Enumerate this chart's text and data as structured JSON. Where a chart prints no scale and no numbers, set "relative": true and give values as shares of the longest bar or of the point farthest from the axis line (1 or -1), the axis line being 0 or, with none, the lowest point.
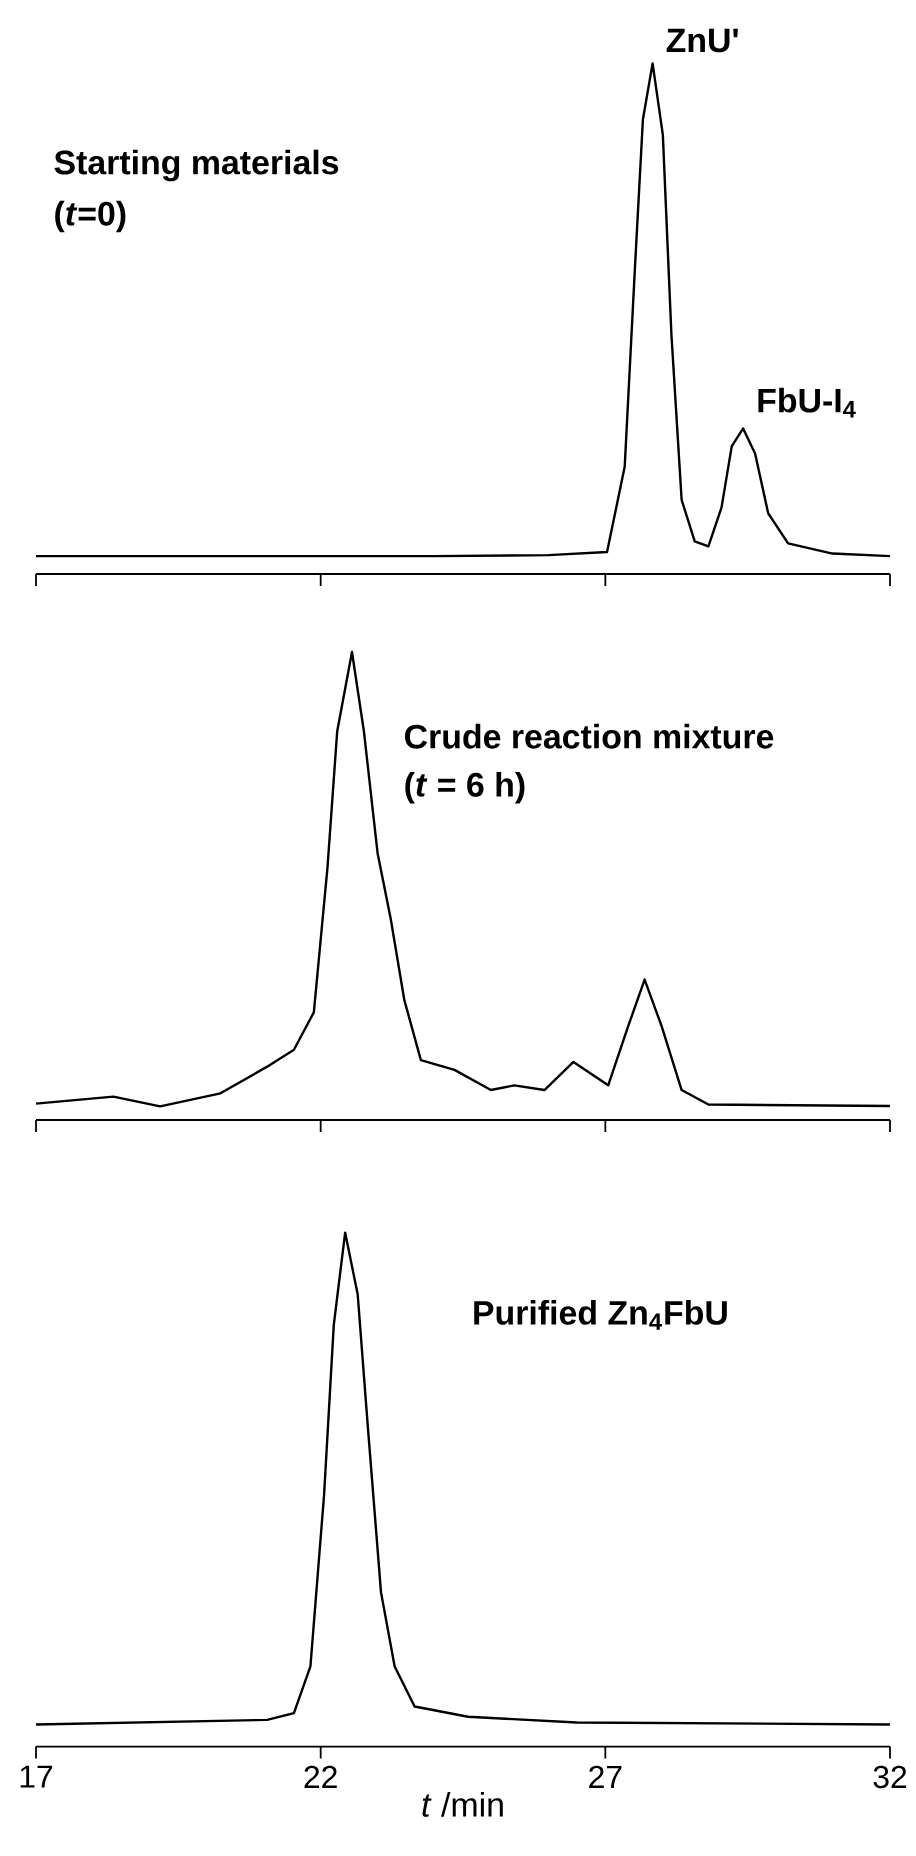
{
  "chart_data": [
    {
      "type": "line",
      "title": "Starting materials",
      "subtitle": "(*t*=0)",
      "relative": true,
      "xlim": [
        17,
        32
      ],
      "xticks": [
        17,
        22,
        27,
        32
      ],
      "tick_labels": false,
      "line_style": "solid",
      "annotations": [
        {
          "text": "ZnU'",
          "x": 27.83,
          "y": 1
        },
        {
          "text": "FbU-I$_{4}$",
          "x": 29.42,
          "y": 0.285
        }
      ],
      "x": [
        17,
        18,
        20,
        24,
        26,
        27.03,
        27.34,
        27.52,
        27.66,
        27.83,
        28.01,
        28.16,
        28.34,
        28.57,
        28.81,
        29.04,
        29.22,
        29.42,
        29.63,
        29.86,
        30.21,
        30.99,
        32
      ],
      "series": [
        {
          "color": "#000000",
          "values": [
            0.035,
            0.035,
            0.035,
            0.035,
            0.037,
            0.043,
            0.21,
            0.6,
            0.89,
            1,
            0.86,
            0.47,
            0.145,
            0.064,
            0.054,
            0.13,
            0.25,
            0.285,
            0.236,
            0.119,
            0.06,
            0.04,
            0.035
          ]
        }
      ]
    },
    {
      "type": "line",
      "title": "Crude reaction mixture",
      "subtitle": "(*t* = 6 h)",
      "relative": true,
      "xlim": [
        17,
        32
      ],
      "xticks": [
        17,
        22,
        27,
        32
      ],
      "tick_labels": false,
      "line_style": "solid",
      "x": [
        17,
        18.36,
        19.18,
        20.24,
        21.06,
        21.53,
        21.88,
        22.12,
        22.29,
        22.55,
        22.76,
        23.0,
        23.23,
        23.47,
        23.76,
        24.35,
        24.99,
        25.4,
        25.93,
        26.44,
        27.05,
        27.4,
        27.69,
        27.99,
        28.34,
        28.81,
        32
      ],
      "series": [
        {
          "color": "#000000",
          "values": [
            0.035,
            0.05,
            0.029,
            0.057,
            0.114,
            0.15,
            0.23,
            0.54,
            0.83,
            1,
            0.83,
            0.57,
            0.43,
            0.256,
            0.128,
            0.107,
            0.064,
            0.074,
            0.064,
            0.124,
            0.074,
            0.2,
            0.3,
            0.2,
            0.064,
            0.033,
            0.03
          ]
        }
      ]
    },
    {
      "type": "line",
      "title": "Purified Zn$_{4}$FbU",
      "xlabel": "*t* /min",
      "relative": true,
      "xlim": [
        17,
        32
      ],
      "xticks": [
        17,
        22,
        27,
        32
      ],
      "tick_labels": "x",
      "line_style": "solid",
      "x": [
        17,
        21.06,
        21.53,
        21.82,
        22.06,
        22.23,
        22.43,
        22.65,
        22.83,
        23.06,
        23.3,
        23.65,
        24.59,
        26.5,
        32
      ],
      "series": [
        {
          "color": "#000000",
          "values": [
            0.043,
            0.052,
            0.065,
            0.156,
            0.49,
            0.82,
            1,
            0.88,
            0.62,
            0.3,
            0.156,
            0.078,
            0.058,
            0.047,
            0.043
          ]
        }
      ]
    }
  ]
}
